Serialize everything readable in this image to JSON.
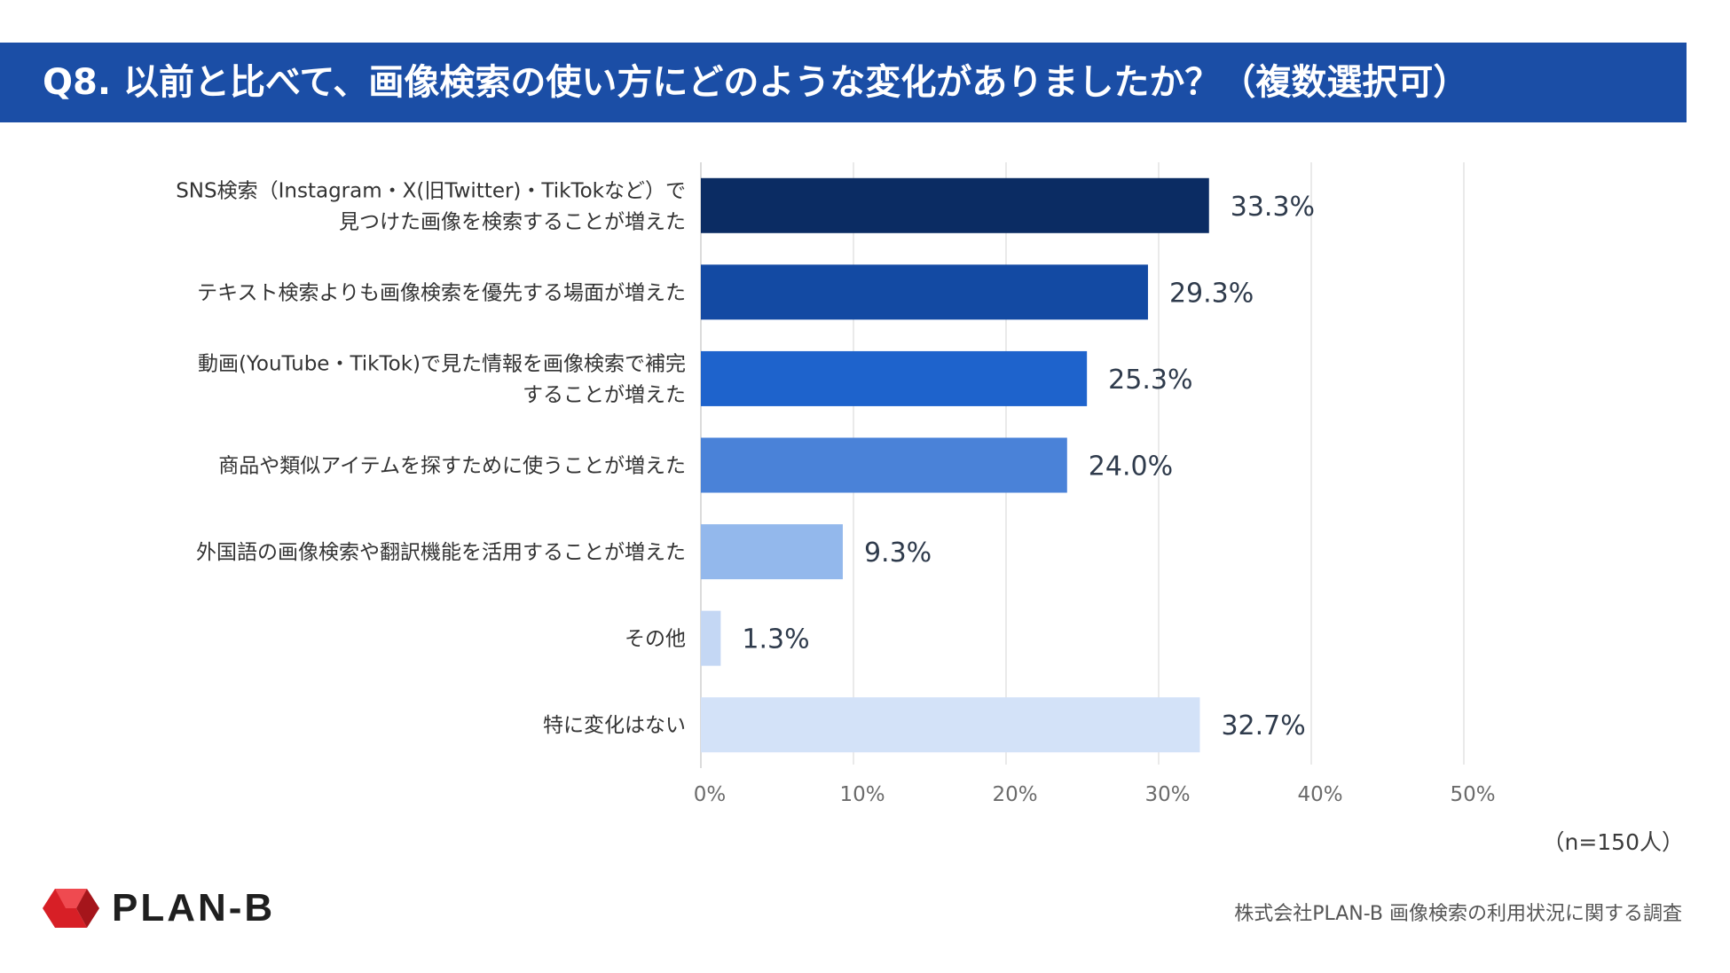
{
  "header": {
    "title": "Q8. 以前と比べて、画像検索の使い方にどのような変化がありましたか？（複数選択可）"
  },
  "chart_data": {
    "type": "bar",
    "orientation": "horizontal",
    "title": "Q8. 以前と比べて、画像検索の使い方にどのような変化がありましたか？（複数選択可）",
    "categories": [
      [
        "SNS検索（Instagram・X(旧Twitter)・TikTokなど）で",
        "見つけた画像を検索することが増えた"
      ],
      [
        "テキスト検索よりも画像検索を優先する場面が増えた"
      ],
      [
        "動画(YouTube・TikTok)で見た情報を画像検索で補完",
        "することが増えた"
      ],
      [
        "商品や類似アイテムを探すために使うことが増えた"
      ],
      [
        "外国語の画像検索や翻訳機能を活用することが増えた"
      ],
      [
        "その他"
      ],
      [
        "特に変化はない"
      ]
    ],
    "values": [
      33.3,
      29.3,
      25.3,
      24.0,
      9.3,
      1.3,
      32.7
    ],
    "value_labels": [
      "33.3%",
      "29.3%",
      "25.3%",
      "24.0%",
      "9.3%",
      "1.3%",
      "32.7%"
    ],
    "colors": [
      "#0b2c63",
      "#134aa3",
      "#1e63cc",
      "#4a82d8",
      "#93b8ec",
      "#c4d7f4",
      "#d3e2f8"
    ],
    "xlim": [
      0,
      50
    ],
    "xticks": [
      "0%",
      "10%",
      "20%",
      "30%",
      "40%",
      "50%"
    ],
    "grid": true
  },
  "note": "（n=150人）",
  "source": "株式会社PLAN-B 画像検索の利用状況に関する調査",
  "logo": {
    "text": "PLAN-B",
    "mark_color": "#d71f26"
  }
}
